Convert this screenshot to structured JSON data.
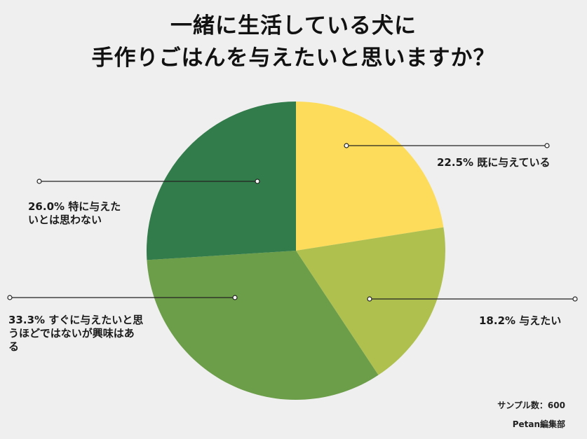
{
  "chart_data": {
    "type": "pie",
    "title_lines": [
      "一緒に生活している犬に",
      "手作りごはんを与えたいと思いますか？"
    ],
    "start_angle_deg": 0,
    "direction": "clockwise",
    "slices": [
      {
        "label": "既に与えている",
        "value": 22.5,
        "color": "#fcdc5a",
        "display": "22.5% 既に与えている"
      },
      {
        "label": "与えたい",
        "value": 18.2,
        "color": "#afc04f",
        "display": "18.2% 与えたい"
      },
      {
        "label": "すぐに与えたいと思うほどではないが興味はある",
        "value": 33.3,
        "color": "#6c9e49",
        "display": "33.3% すぐに与えたいと思\nうほどではないが興味はあ\nる"
      },
      {
        "label": "特に与えたいとは思わない",
        "value": 26.0,
        "color": "#327b4a",
        "display": "26.0% 特に与えた\nいとは思わない"
      }
    ]
  },
  "footer": {
    "sample": "サンプル数：600",
    "source": "Petan編集部"
  }
}
